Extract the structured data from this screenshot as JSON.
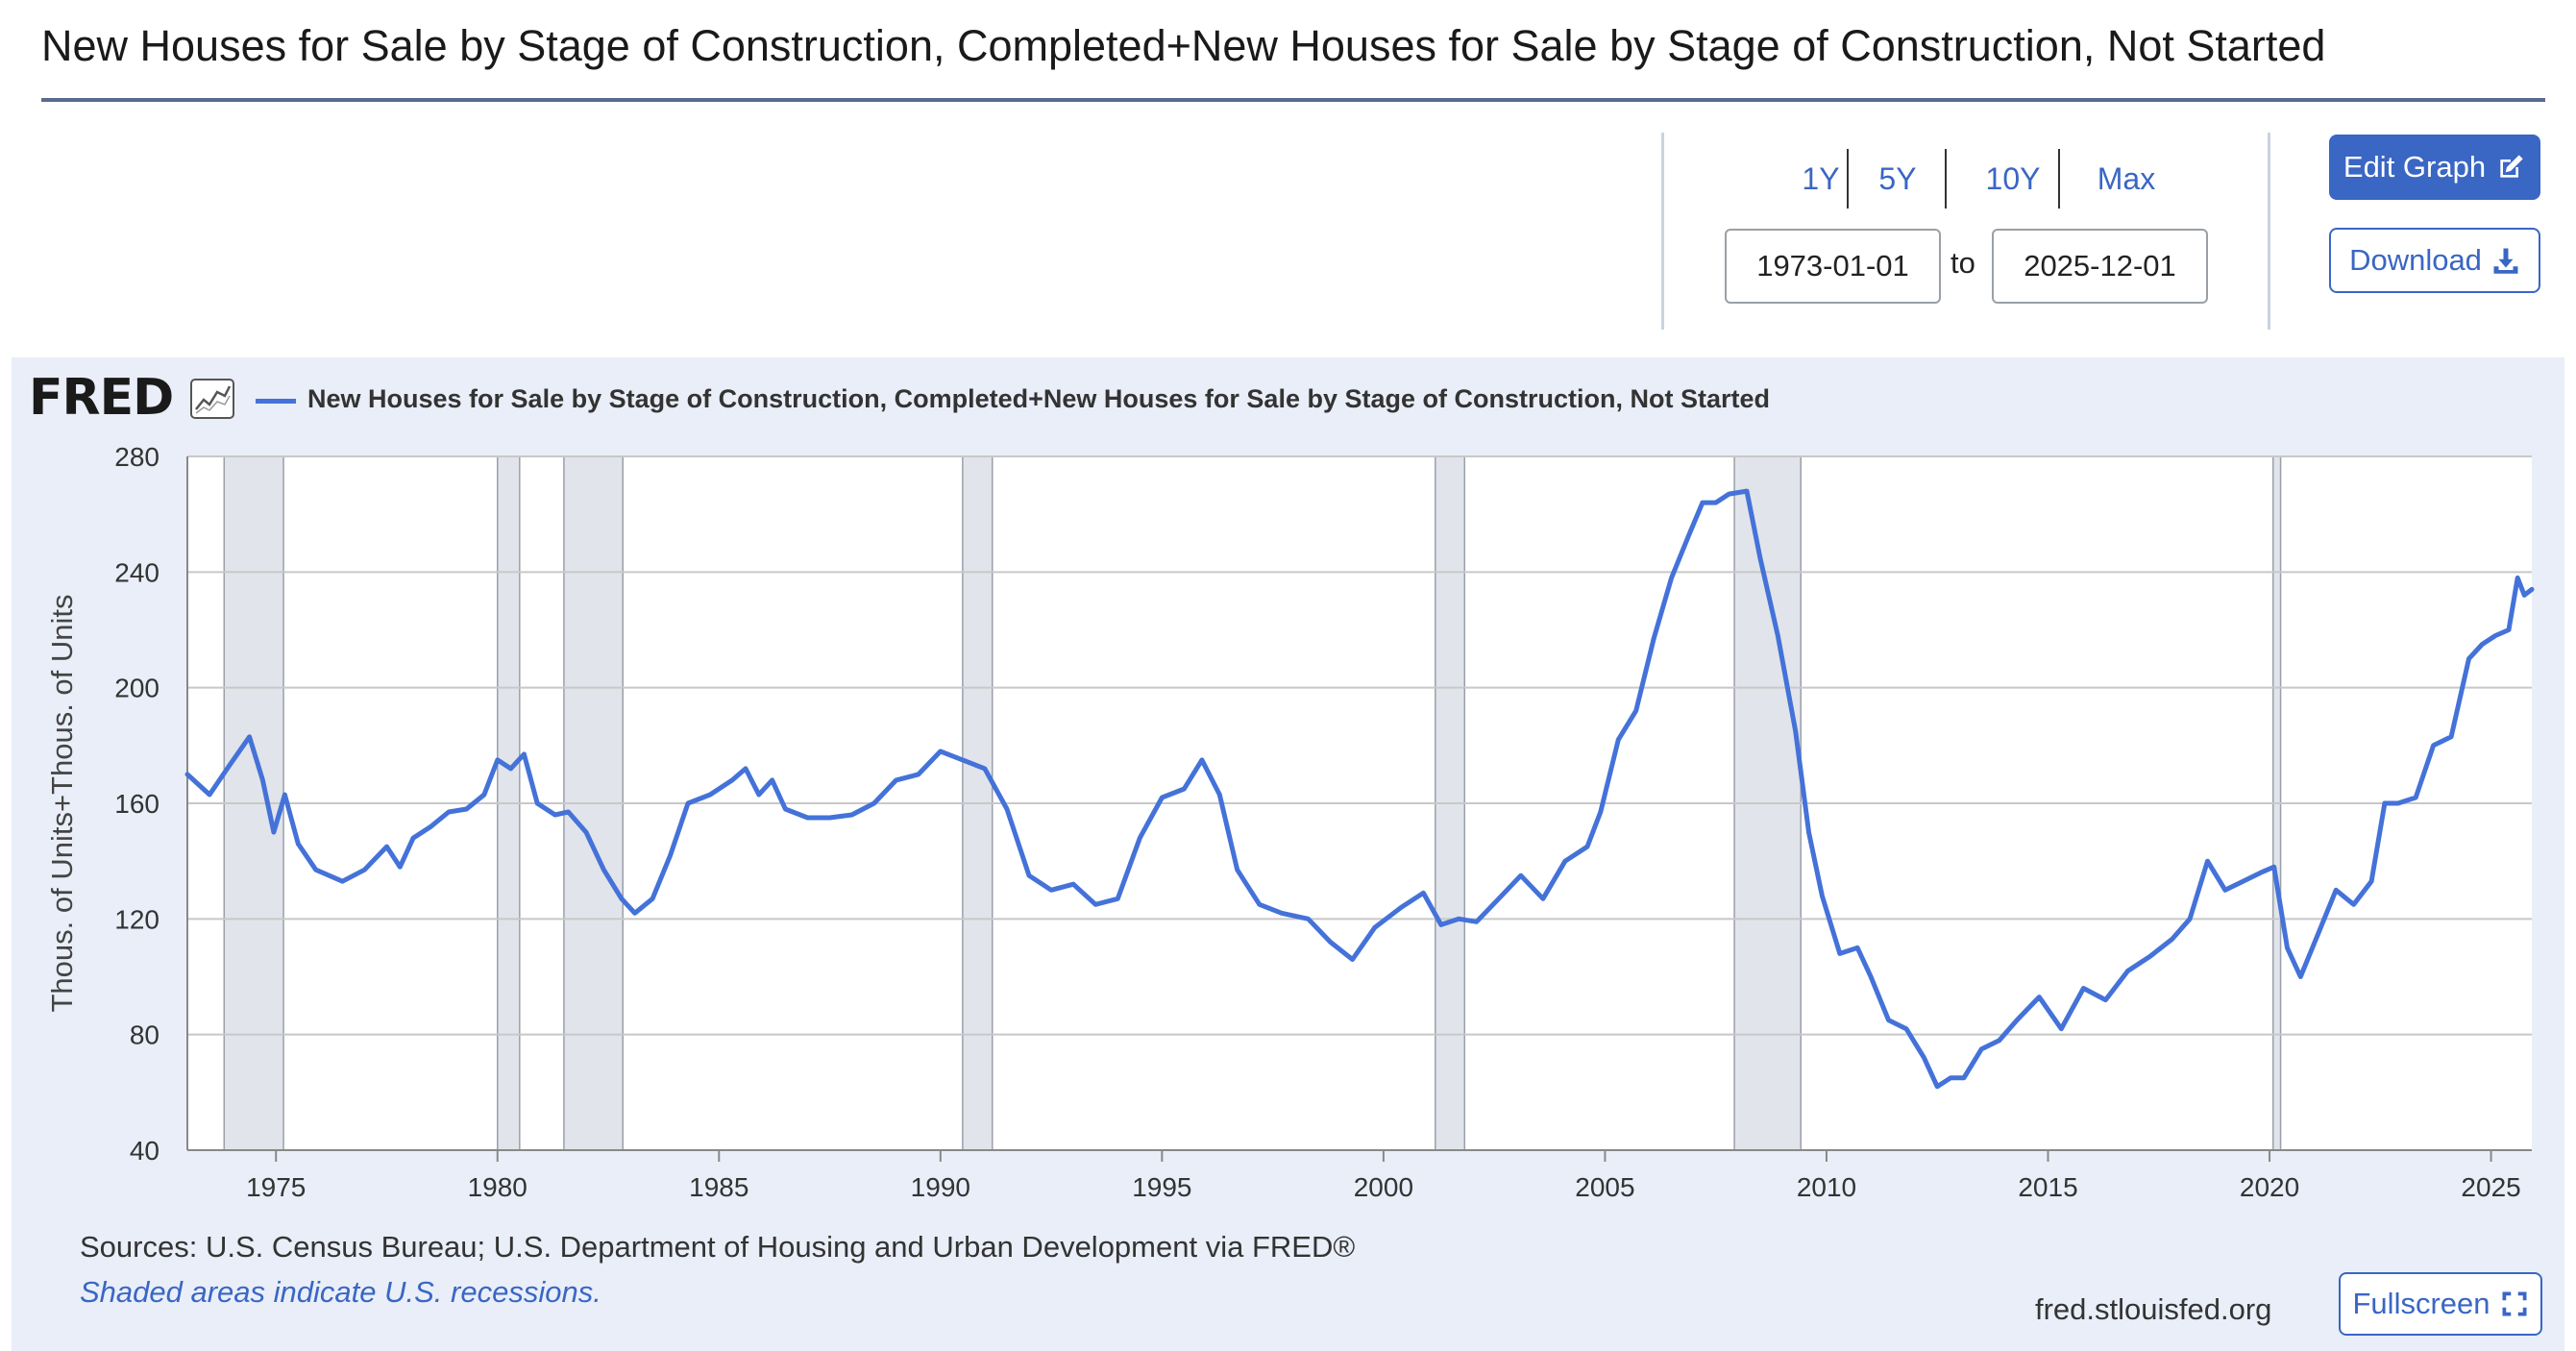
{
  "header": {
    "title": "New Houses for Sale by Stage of Construction, Completed+New Houses for Sale by Stage of Construction, Not Started"
  },
  "controls": {
    "range_buttons": [
      "1Y",
      "5Y",
      "10Y",
      "Max"
    ],
    "start_date": "1973-01-01",
    "end_date": "2025-12-01",
    "to_label": "to",
    "edit_graph_label": "Edit Graph",
    "download_label": "Download",
    "edit_icon": "pencil-square-icon",
    "download_icon": "download-icon"
  },
  "branding": {
    "logo_text": "FRED",
    "mini_chart_icon": "line-chart-icon",
    "url": "fred.stlouisfed.org",
    "fullscreen_label": "Fullscreen",
    "fullscreen_icon": "expand-icon"
  },
  "footer": {
    "sources": "Sources: U.S. Census Bureau; U.S. Department of Housing and Urban Development via FRED®",
    "shaded_note": "Shaded areas indicate U.S. recessions."
  },
  "colors": {
    "series": "#4472d9",
    "accent": "#3a66c4",
    "recession": "#e1e4ea",
    "panel_bg": "#e9eef8"
  },
  "chart_data": {
    "type": "line",
    "title": "New Houses for Sale by Stage of Construction, Completed+New Houses for Sale by Stage of Construction, Not Started",
    "xlabel": "",
    "ylabel": "Thous. of Units+Thous. of Units",
    "xlim": [
      1973.0,
      2025.92
    ],
    "ylim": [
      40,
      280
    ],
    "yticks": [
      40,
      80,
      120,
      160,
      200,
      240,
      280
    ],
    "xticks": [
      1975,
      1980,
      1985,
      1990,
      1995,
      2000,
      2005,
      2010,
      2015,
      2020,
      2025
    ],
    "ytick_labels": [
      "40",
      "80",
      "120",
      "160",
      "200",
      "240",
      "280"
    ],
    "xtick_labels": [
      "1975",
      "1980",
      "1985",
      "1990",
      "1995",
      "2000",
      "2005",
      "2010",
      "2015",
      "2020",
      "2025"
    ],
    "grid": true,
    "legend": "top-left",
    "recessions": [
      [
        1973.83,
        1975.17
      ],
      [
        1980.0,
        1980.5
      ],
      [
        1981.5,
        1982.83
      ],
      [
        1990.5,
        1991.17
      ],
      [
        2001.17,
        2001.83
      ],
      [
        2007.92,
        2009.42
      ],
      [
        2020.08,
        2020.25
      ]
    ],
    "series": [
      {
        "name": "New Houses for Sale by Stage of Construction, Completed+New Houses for Sale by Stage of Construction, Not Started",
        "x": [
          1973.0,
          1973.5,
          1973.9,
          1974.4,
          1974.7,
          1974.95,
          1975.2,
          1975.5,
          1975.9,
          1976.5,
          1977.0,
          1977.5,
          1977.8,
          1978.1,
          1978.5,
          1978.9,
          1979.3,
          1979.7,
          1980.0,
          1980.3,
          1980.6,
          1980.9,
          1981.3,
          1981.6,
          1982.0,
          1982.4,
          1982.8,
          1983.1,
          1983.5,
          1983.9,
          1984.3,
          1984.8,
          1985.3,
          1985.6,
          1985.9,
          1986.2,
          1986.5,
          1987.0,
          1987.5,
          1988.0,
          1988.5,
          1989.0,
          1989.5,
          1990.0,
          1990.5,
          1991.0,
          1991.5,
          1992.0,
          1992.5,
          1993.0,
          1993.5,
          1994.0,
          1994.5,
          1995.0,
          1995.5,
          1995.9,
          1996.3,
          1996.7,
          1997.2,
          1997.7,
          1998.3,
          1998.8,
          1999.3,
          1999.8,
          2000.4,
          2000.9,
          2001.3,
          2001.7,
          2002.1,
          2002.6,
          2003.1,
          2003.6,
          2004.1,
          2004.6,
          2004.9,
          2005.3,
          2005.7,
          2006.1,
          2006.5,
          2006.9,
          2007.2,
          2007.5,
          2007.8,
          2008.2,
          2008.5,
          2008.9,
          2009.3,
          2009.6,
          2009.9,
          2010.3,
          2010.7,
          2011.0,
          2011.4,
          2011.8,
          2012.2,
          2012.5,
          2012.8,
          2013.1,
          2013.5,
          2013.9,
          2014.3,
          2014.8,
          2015.3,
          2015.8,
          2016.3,
          2016.8,
          2017.3,
          2017.8,
          2018.2,
          2018.6,
          2019.0,
          2019.4,
          2019.8,
          2020.1,
          2020.4,
          2020.7,
          2021.1,
          2021.5,
          2021.9,
          2022.3,
          2022.6,
          2022.9,
          2023.3,
          2023.7,
          2024.1,
          2024.5,
          2024.8,
          2025.1,
          2025.4,
          2025.6,
          2025.75,
          2025.92
        ],
        "values": [
          170,
          163,
          172,
          183,
          168,
          150,
          163,
          146,
          137,
          133,
          137,
          145,
          138,
          148,
          152,
          157,
          158,
          163,
          175,
          172,
          177,
          160,
          156,
          157,
          150,
          137,
          127,
          122,
          127,
          142,
          160,
          163,
          168,
          172,
          163,
          168,
          158,
          155,
          155,
          156,
          160,
          168,
          170,
          178,
          175,
          172,
          158,
          135,
          130,
          132,
          125,
          127,
          148,
          162,
          165,
          175,
          163,
          137,
          125,
          122,
          120,
          112,
          106,
          117,
          124,
          129,
          118,
          120,
          119,
          127,
          135,
          127,
          140,
          145,
          157,
          182,
          192,
          217,
          238,
          253,
          264,
          264,
          267,
          268,
          245,
          218,
          185,
          150,
          128,
          108,
          110,
          100,
          85,
          82,
          72,
          62,
          65,
          65,
          75,
          78,
          85,
          93,
          82,
          96,
          92,
          102,
          107,
          113,
          120,
          140,
          130,
          133,
          136,
          138,
          110,
          100,
          115,
          130,
          125,
          133,
          160,
          160,
          162,
          180,
          183,
          210,
          215,
          218,
          220,
          238,
          232,
          234
        ]
      }
    ]
  }
}
